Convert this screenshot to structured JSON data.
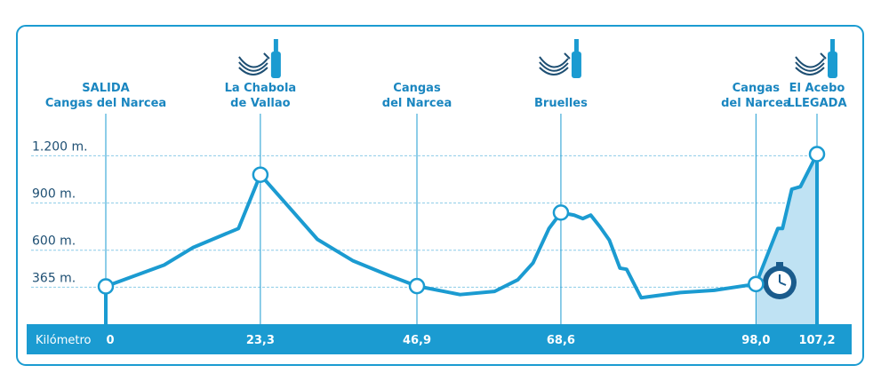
{
  "chart_data": {
    "type": "line",
    "x_label": "Kilómetro",
    "xlim": [
      0,
      107.2
    ],
    "ylim": [
      130,
      1400
    ],
    "xticks": [
      0,
      {
        "value": 23.3,
        "label": "23,3"
      },
      {
        "value": 46.9,
        "label": "46,9"
      },
      {
        "value": 68.6,
        "label": "68,6"
      },
      {
        "value": 98.0,
        "label": "98,0"
      },
      {
        "value": 107.2,
        "label": "107,2"
      }
    ],
    "yticks": [
      {
        "value": 365,
        "label": "365 m."
      },
      {
        "value": 600,
        "label": "600 m."
      },
      {
        "value": 900,
        "label": "900 m."
      },
      {
        "value": 1200,
        "label": "1.200 m."
      }
    ],
    "grid": true,
    "x": [
      0,
      8.8,
      13.1,
      20.0,
      23.3,
      31.9,
      37.3,
      42.7,
      46.9,
      53.4,
      58.6,
      62.1,
      64.4,
      66.8,
      68.6,
      70.6,
      71.9,
      73.1,
      74.5,
      75.9,
      77.5,
      78.5,
      80.7,
      86.6,
      91.7,
      98.0,
      101.3,
      102.0,
      103.4,
      104.7,
      107.2
    ],
    "series": [
      {
        "color": "#1b9bd1",
        "values": [
          370,
          506,
          616,
          738,
          1080,
          669,
          532,
          439,
          372,
          318,
          338,
          412,
          519,
          738,
          839,
          823,
          801,
          823,
          748,
          664,
          486,
          479,
          298,
          331,
          345,
          385,
          738,
          738,
          988,
          1004,
          1211
        ]
      }
    ],
    "waypoints": [
      {
        "lines": [
          "SALIDA",
          "Cangas del Narcea"
        ],
        "supply": false
      },
      {
        "lines": [
          "La Chabola",
          "de Vallao"
        ],
        "supply": true
      },
      {
        "lines": [
          "Cangas",
          "del Narcea"
        ],
        "supply": false
      },
      {
        "lines": [
          "Bruelles"
        ],
        "supply": true
      },
      {
        "lines": [
          "Cangas",
          "del Narcea"
        ],
        "supply": false
      },
      {
        "lines": [
          "El Acebo",
          "LLEGADA"
        ],
        "supply": true
      }
    ]
  }
}
